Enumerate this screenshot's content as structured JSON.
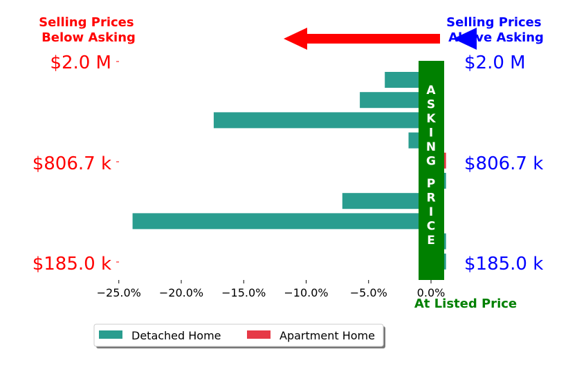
{
  "chart_data": {
    "type": "bar",
    "orientation": "horizontal",
    "header_left": [
      "Selling Prices",
      "Below Asking"
    ],
    "header_right": [
      "Selling Prices",
      "Above Asking"
    ],
    "asking_label": "ASKING PRICE",
    "at_listed_label": "At Listed Price",
    "left_price_labels": [
      "$2.0 M",
      "$806.7 k",
      "$185.0 k"
    ],
    "right_price_labels": [
      "$2.0 M",
      "$806.7 k",
      "$185.0 k"
    ],
    "xticks": [
      -25,
      -20,
      -15,
      -10,
      -5,
      0
    ],
    "xtick_labels": [
      "−25.0%",
      "−20.0%",
      "−15.0%",
      "−10.0%",
      "−5.0%",
      "0.0%"
    ],
    "xlim": [
      -25.5,
      1.5
    ],
    "series": [
      {
        "name": "Detached Home",
        "color": "#2a9d8f",
        "bars": [
          {
            "row": 0,
            "value": -3.7
          },
          {
            "row": 1,
            "value": -5.7
          },
          {
            "row": 2,
            "value": -17.4
          },
          {
            "row": 3,
            "value": -1.8
          },
          {
            "row": 5,
            "value": 1.2
          },
          {
            "row": 6,
            "value": -7.1
          },
          {
            "row": 7,
            "value": -23.9
          },
          {
            "row": 8,
            "value": 1.2
          },
          {
            "row": 9,
            "value": 1.2
          }
        ]
      },
      {
        "name": "Apartment Home",
        "color": "#e63946",
        "bars": [
          {
            "row": 4,
            "value": 1.2
          }
        ]
      }
    ],
    "colors": {
      "below": "#ff0000",
      "above": "#0000ff",
      "asking": "#008000",
      "arrow_left": "#ff0000",
      "arrow_right": "#0000ff"
    },
    "legend_position": "bottom-left"
  }
}
